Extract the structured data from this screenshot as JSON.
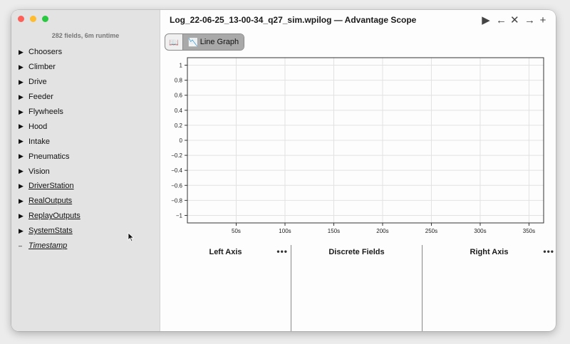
{
  "window": {
    "title": "Log_22-06-25_13-00-34_q27_sim.wpilog — Advantage Scope"
  },
  "sidebar": {
    "summary": "282 fields, 6m runtime",
    "items": [
      {
        "label": "Choosers",
        "arrow": "▶",
        "style": "plain"
      },
      {
        "label": "Climber",
        "arrow": "▶",
        "style": "plain"
      },
      {
        "label": "Drive",
        "arrow": "▶",
        "style": "plain"
      },
      {
        "label": "Feeder",
        "arrow": "▶",
        "style": "plain"
      },
      {
        "label": "Flywheels",
        "arrow": "▶",
        "style": "plain"
      },
      {
        "label": "Hood",
        "arrow": "▶",
        "style": "plain"
      },
      {
        "label": "Intake",
        "arrow": "▶",
        "style": "plain"
      },
      {
        "label": "Pneumatics",
        "arrow": "▶",
        "style": "plain"
      },
      {
        "label": "Vision",
        "arrow": "▶",
        "style": "plain"
      },
      {
        "label": "DriverStation",
        "arrow": "▶",
        "style": "link"
      },
      {
        "label": "RealOutputs",
        "arrow": "▶",
        "style": "link"
      },
      {
        "label": "ReplayOutputs",
        "arrow": "▶",
        "style": "link"
      },
      {
        "label": "SystemStats",
        "arrow": "▶",
        "style": "link"
      },
      {
        "label": "Timestamp",
        "arrow": "–",
        "style": "italic"
      }
    ]
  },
  "controls": {
    "play_icon": "▶",
    "back_icon": "←",
    "close_icon": "✕",
    "forward_icon": "→",
    "add_icon": "+"
  },
  "tabs": {
    "docs_icon": "📖",
    "line_graph_icon": "📉",
    "line_graph_label": "Line Graph"
  },
  "chart_data": {
    "type": "line",
    "series": [],
    "yticks": [
      "1",
      "0.8",
      "0.6",
      "0.4",
      "0.2",
      "0",
      "−0.2",
      "−0.4",
      "−0.6",
      "−0.8",
      "−1"
    ],
    "xticks": [
      "50s",
      "100s",
      "150s",
      "200s",
      "250s",
      "300s",
      "350s"
    ],
    "ylim": [
      -1.1,
      1.1
    ],
    "xlim": [
      0,
      365
    ],
    "grid": true
  },
  "panels": {
    "left_axis": "Left Axis",
    "discrete_fields": "Discrete Fields",
    "right_axis": "Right Axis",
    "menu_icon": "•••"
  }
}
